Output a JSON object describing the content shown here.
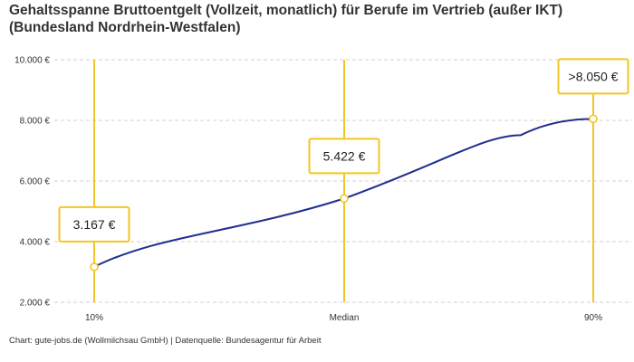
{
  "chart_data": {
    "type": "line",
    "title": "Gehaltsspanne Bruttoentgelt (Vollzeit, monatlich) für Berufe im Vertrieb (außer IKT) (Bundesland Nordrhein-Westfalen)",
    "xlabel": "",
    "ylabel": "",
    "categories": [
      "10%",
      "Median",
      "90%"
    ],
    "values": [
      3167,
      5422,
      8050
    ],
    "value_labels": [
      "3.167 €",
      "5.422 €",
      ">8.050 €"
    ],
    "ylim": [
      2000,
      10000
    ],
    "yticks": [
      2000,
      4000,
      6000,
      8000,
      10000
    ],
    "ytick_labels": [
      "2.000 €",
      "4.000 €",
      "6.000 €",
      "8.000 €",
      "10.000 €"
    ],
    "grid": true,
    "legend": "none"
  },
  "footer": {
    "source": "Chart: gute-jobs.de (Wollmilchsau GmbH) | Datenquelle: Bundesagentur für Arbeit"
  },
  "colors": {
    "line": "#1f2f8f",
    "accent": "#f3c623",
    "grid": "#d0d0d0",
    "marker_fill": "#ffffff"
  }
}
